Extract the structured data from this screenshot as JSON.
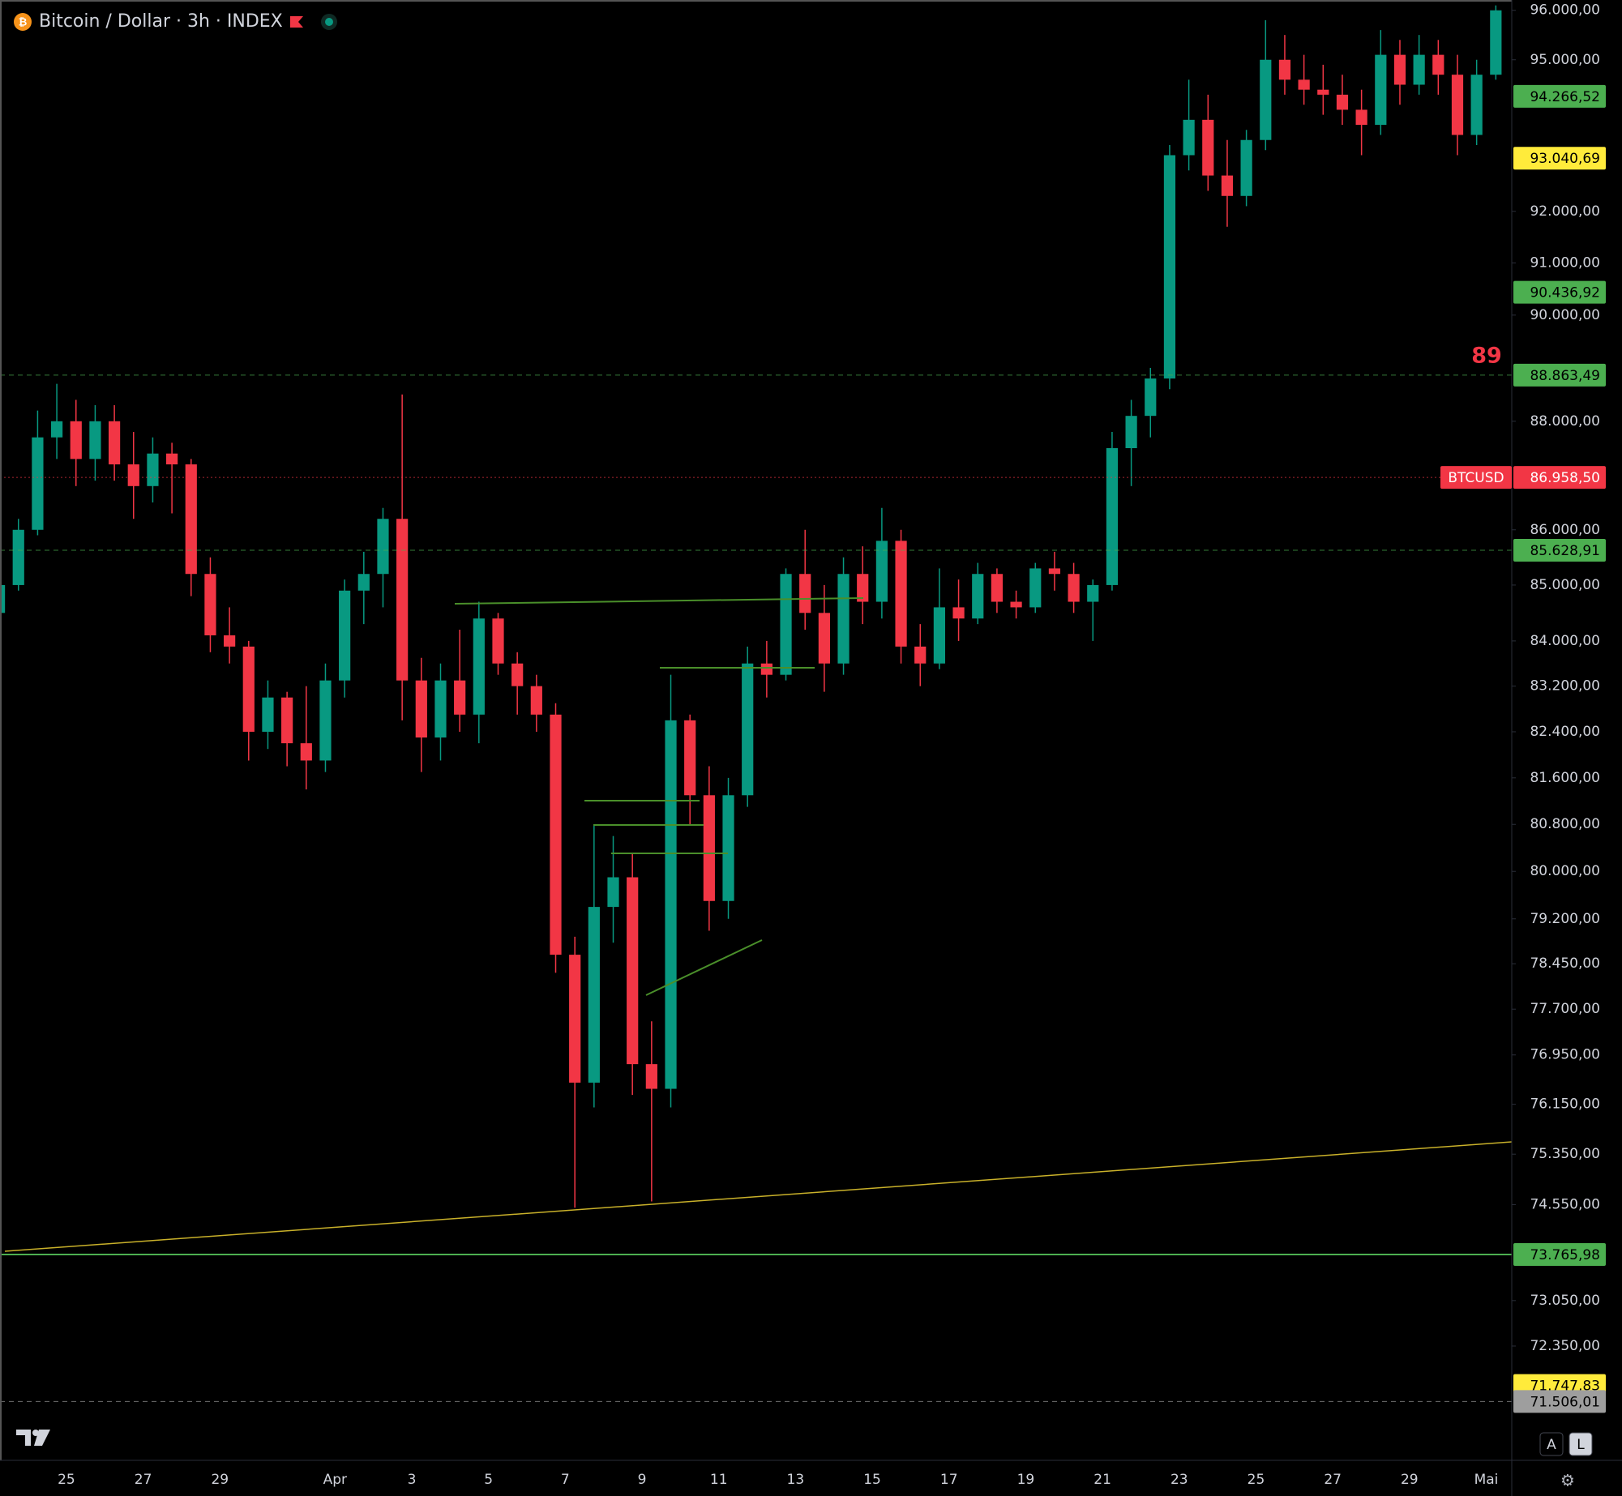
{
  "chart_data": {
    "type": "candlestick",
    "title": "Bitcoin / Dollar · 3h · INDEX",
    "categories": [
      null,
      null,
      null,
      null,
      "25",
      null,
      null,
      null,
      "27",
      null,
      null,
      null,
      "29",
      null,
      null,
      null,
      null,
      null,
      "Apr",
      null,
      null,
      null,
      "3",
      null,
      null,
      null,
      "5",
      null,
      null,
      null,
      "7",
      null,
      null,
      null,
      "9",
      null,
      null,
      null,
      "11",
      null,
      null,
      null,
      "13",
      null,
      null,
      null,
      "15",
      null,
      null,
      null,
      "17",
      null,
      null,
      null,
      "19",
      null,
      null,
      null,
      "21",
      null,
      null,
      null,
      "23",
      null,
      null,
      null,
      "25",
      null,
      null,
      null,
      "27",
      null,
      null,
      null,
      "29",
      null,
      null,
      null,
      "Mai"
    ],
    "open": [
      84500,
      85000,
      86000,
      87700,
      88000,
      87300,
      88000,
      87200,
      86800,
      87400,
      87200,
      85200,
      84100,
      83900,
      82400,
      83000,
      82200,
      81900,
      83300,
      84900,
      85200,
      86200,
      83300,
      82300,
      83300,
      82700,
      84400,
      83600,
      83200,
      82700,
      78600,
      76500,
      79400,
      79900,
      76800,
      76400,
      82600,
      81300,
      79500,
      81300,
      83600,
      83400,
      85200,
      84500,
      83600,
      85200,
      84700,
      85800,
      83900,
      83600,
      84600,
      84400,
      85200,
      84700,
      84600,
      85300,
      85200,
      84700,
      85000,
      87500,
      88100,
      88800,
      93100,
      93800,
      92700,
      92300,
      93400,
      95000,
      94600,
      94400,
      94300,
      94000,
      93700,
      95100,
      94500,
      95100,
      94700,
      93500,
      94700
    ],
    "high": [
      85200,
      86200,
      88200,
      88700,
      88400,
      88300,
      88300,
      87800,
      87700,
      87600,
      87300,
      85500,
      84600,
      84000,
      83300,
      83100,
      83200,
      83600,
      85100,
      85600,
      86400,
      88500,
      83700,
      83600,
      84200,
      84700,
      84500,
      83800,
      83400,
      82900,
      78900,
      80800,
      80600,
      80300,
      77500,
      83400,
      82700,
      81800,
      81600,
      83900,
      84000,
      85300,
      86000,
      85000,
      85500,
      85700,
      86400,
      86000,
      84300,
      85300,
      85100,
      85400,
      85300,
      84900,
      85400,
      85600,
      85400,
      85100,
      87800,
      88400,
      89000,
      93300,
      94600,
      94300,
      93400,
      93600,
      95800,
      95500,
      95100,
      94900,
      94700,
      94400,
      95600,
      95400,
      95500,
      95400,
      95100,
      95000,
      96100
    ],
    "low": [
      84300,
      84900,
      85900,
      87300,
      86800,
      86900,
      86900,
      86200,
      86500,
      86300,
      84800,
      83800,
      83600,
      81900,
      82100,
      81800,
      81400,
      81700,
      83000,
      84300,
      84600,
      82600,
      81700,
      81900,
      82400,
      82200,
      83400,
      82700,
      82400,
      78300,
      74500,
      76100,
      78800,
      76300,
      74600,
      76100,
      80800,
      79000,
      79200,
      81100,
      83000,
      83300,
      84200,
      83100,
      83400,
      84300,
      84400,
      83600,
      83200,
      83500,
      84000,
      84300,
      84500,
      84400,
      84500,
      84900,
      84500,
      84000,
      84900,
      86800,
      87700,
      88600,
      92800,
      92400,
      91700,
      92100,
      93200,
      94300,
      94100,
      93900,
      93700,
      93100,
      93500,
      94100,
      94300,
      94300,
      93100,
      93300,
      94600
    ],
    "close": [
      85000,
      86000,
      87700,
      88000,
      87300,
      88000,
      87200,
      86800,
      87400,
      87200,
      85200,
      84100,
      83900,
      82400,
      83000,
      82200,
      81900,
      83300,
      84900,
      85200,
      86200,
      83300,
      82300,
      83300,
      82700,
      84400,
      83600,
      83200,
      82700,
      78600,
      76500,
      79400,
      79900,
      76800,
      76400,
      82600,
      81300,
      79500,
      81300,
      83600,
      83400,
      85200,
      84500,
      83600,
      85200,
      84700,
      85800,
      83900,
      83600,
      84600,
      84400,
      85200,
      84700,
      84600,
      85300,
      85200,
      84700,
      85000,
      87500,
      88100,
      88800,
      93100,
      93800,
      92700,
      92300,
      93400,
      95000,
      94600,
      94400,
      94300,
      94000,
      93700,
      95100,
      94500,
      95100,
      94700,
      93500,
      94700,
      96000
    ],
    "up_color": "#089981",
    "down_color": "#f23645",
    "log_scale": true,
    "grid": false,
    "ylim": [
      70620,
      96210
    ],
    "yticks": [
      {
        "value": 96000,
        "label": "96.000,00"
      },
      {
        "value": 95000,
        "label": "95.000,00"
      },
      {
        "value": 92000,
        "label": "92.000,00"
      },
      {
        "value": 91000,
        "label": "91.000,00"
      },
      {
        "value": 90000,
        "label": "90.000,00"
      },
      {
        "value": 88000,
        "label": "88.000,00"
      },
      {
        "value": 86000,
        "label": "86.000,00"
      },
      {
        "value": 85000,
        "label": "85.000,00"
      },
      {
        "value": 84000,
        "label": "84.000,00"
      },
      {
        "value": 83200,
        "label": "83.200,00"
      },
      {
        "value": 82400,
        "label": "82.400,00"
      },
      {
        "value": 81600,
        "label": "81.600,00"
      },
      {
        "value": 80800,
        "label": "80.800,00"
      },
      {
        "value": 80000,
        "label": "80.000,00"
      },
      {
        "value": 79200,
        "label": "79.200,00"
      },
      {
        "value": 78450,
        "label": "78.450,00"
      },
      {
        "value": 77700,
        "label": "77.700,00"
      },
      {
        "value": 76950,
        "label": "76.950,00"
      },
      {
        "value": 76150,
        "label": "76.150,00"
      },
      {
        "value": 75350,
        "label": "75.350,00"
      },
      {
        "value": 74550,
        "label": "74.550,00"
      },
      {
        "value": 73050,
        "label": "73.050,00"
      },
      {
        "value": 72350,
        "label": "72.350,00"
      }
    ],
    "price_labels": [
      {
        "value": 94266.52,
        "label": "94.266,52",
        "color": "#4caf50"
      },
      {
        "value": 93040.69,
        "label": "93.040,69",
        "color": "#ffeb3b"
      },
      {
        "value": 90436.92,
        "label": "90.436,92",
        "color": "#4caf50"
      },
      {
        "value": 88863.49,
        "label": "88.863,49",
        "color": "#4caf50",
        "line": "dashed"
      },
      {
        "name": "BTCUSD",
        "value": 86958.5,
        "label": "86.958,50",
        "color": "#f23645",
        "line": "dotted"
      },
      {
        "value": 85628.91,
        "label": "85.628,91",
        "color": "#4caf50",
        "line": "dashed"
      },
      {
        "value": 73765.98,
        "label": "73.765,98",
        "color": "#4caf50",
        "line": "solid"
      },
      {
        "value": 71747.83,
        "label": "71.747,83",
        "color": "#ffeb3b"
      },
      {
        "value": 71506.01,
        "label": "71.506,01",
        "color": "#9e9e9e",
        "line": "dashed"
      }
    ],
    "annotation": "89",
    "scale_buttons": [
      "A",
      "L"
    ]
  }
}
